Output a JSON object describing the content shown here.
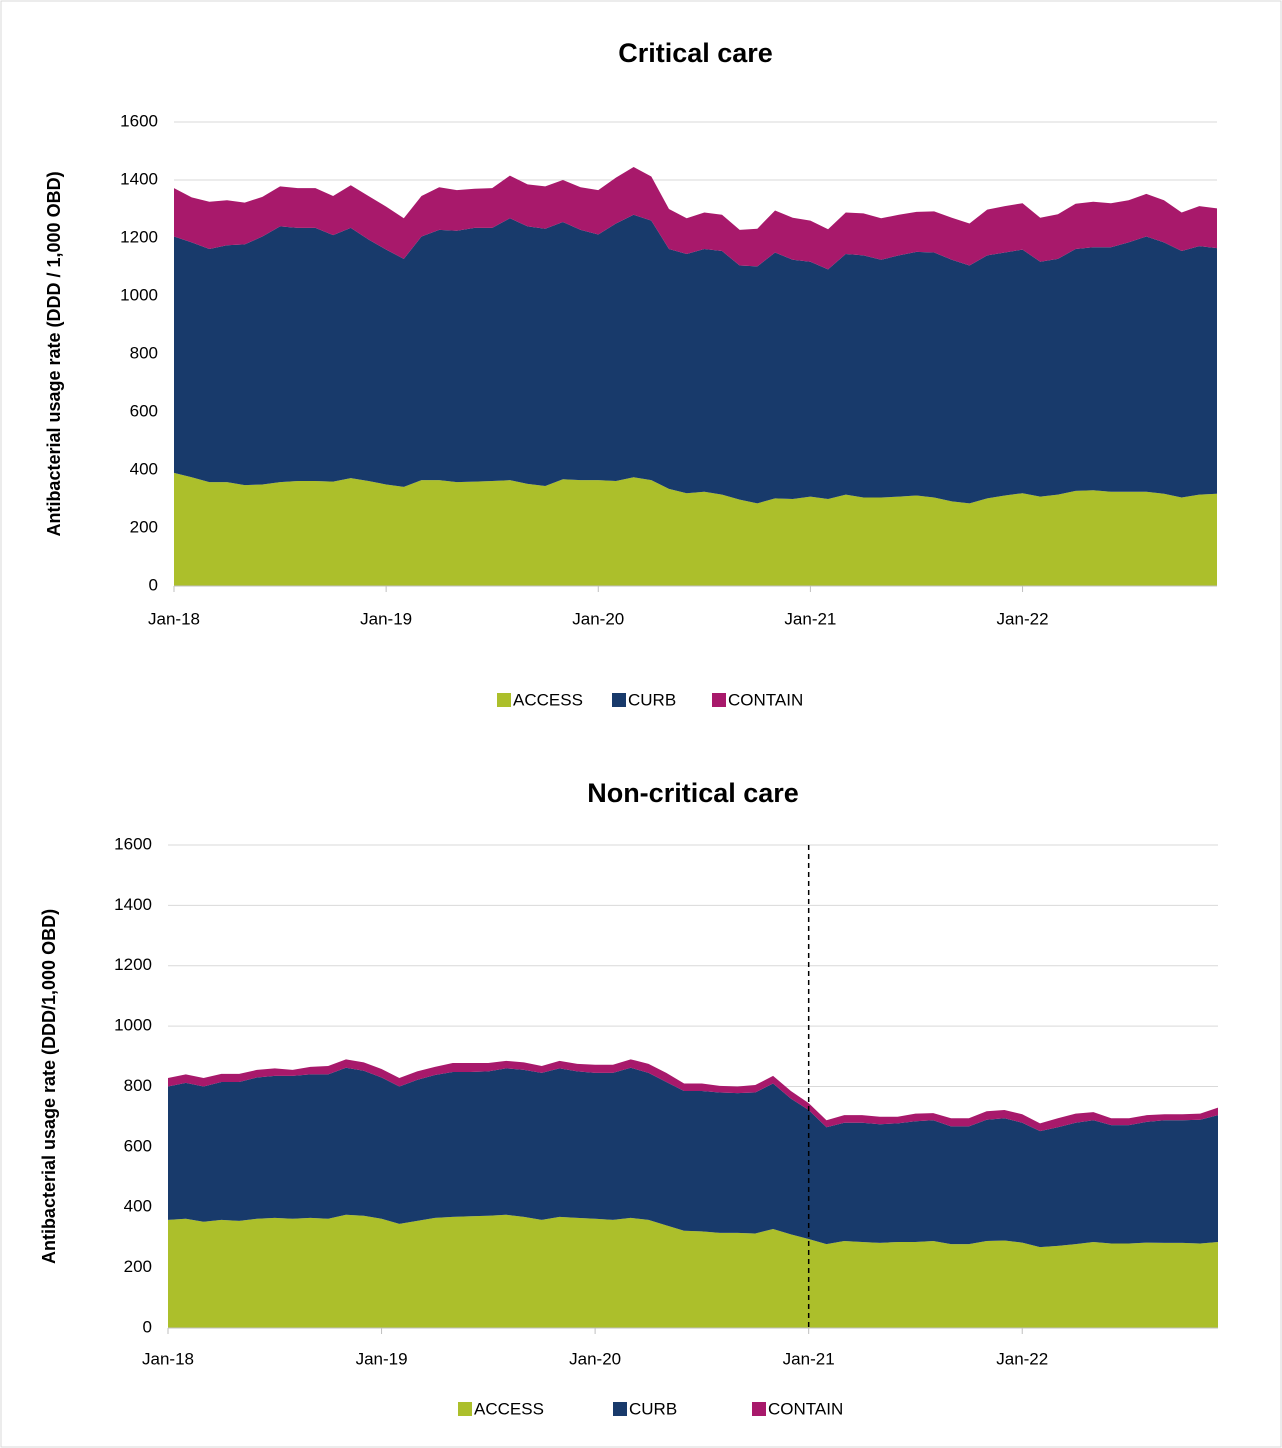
{
  "chart_data": [
    {
      "type": "stacked_area",
      "title": "Critical care",
      "y_label": "Antibacterial usage rate (DDD / 1,000 OBD)",
      "categories": [
        "Jan-18",
        null,
        null,
        null,
        null,
        null,
        null,
        null,
        null,
        null,
        null,
        null,
        "Jan-19",
        null,
        null,
        null,
        null,
        null,
        null,
        null,
        null,
        null,
        null,
        null,
        "Jan-20",
        null,
        null,
        null,
        null,
        null,
        null,
        null,
        null,
        null,
        null,
        null,
        "Jan-21",
        null,
        null,
        null,
        null,
        null,
        null,
        null,
        null,
        null,
        null,
        null,
        "Jan-22",
        null,
        null,
        null,
        null,
        null,
        null,
        null,
        null,
        null,
        null,
        null
      ],
      "series": [
        {
          "name": "ACCESS",
          "color": "#acbf2b",
          "values": [
            390,
            375,
            358,
            358,
            348,
            350,
            358,
            362,
            362,
            360,
            372,
            362,
            350,
            342,
            365,
            365,
            358,
            360,
            362,
            365,
            352,
            345,
            368,
            365,
            365,
            362,
            375,
            365,
            335,
            320,
            325,
            315,
            298,
            285,
            302,
            300,
            308,
            300,
            315,
            305,
            305,
            308,
            312,
            305,
            292,
            285,
            302,
            312,
            320,
            308,
            315,
            328,
            330,
            325,
            325,
            325,
            318,
            305,
            315,
            318
          ]
        },
        {
          "name": "CURB",
          "color": "#183a6b",
          "values": [
            815,
            810,
            804,
            817,
            830,
            855,
            882,
            873,
            873,
            850,
            863,
            833,
            810,
            786,
            840,
            863,
            867,
            875,
            873,
            903,
            888,
            887,
            887,
            863,
            847,
            888,
            905,
            895,
            827,
            825,
            837,
            840,
            807,
            817,
            848,
            825,
            810,
            792,
            830,
            835,
            820,
            832,
            840,
            845,
            833,
            820,
            838,
            838,
            840,
            810,
            813,
            834,
            838,
            843,
            860,
            880,
            867,
            850,
            857,
            847
          ]
        },
        {
          "name": "CONTAIN",
          "color": "#a8196b",
          "values": [
            167,
            155,
            163,
            155,
            144,
            137,
            138,
            137,
            137,
            135,
            147,
            150,
            148,
            140,
            140,
            147,
            140,
            135,
            137,
            147,
            145,
            146,
            145,
            147,
            153,
            158,
            165,
            152,
            138,
            123,
            126,
            125,
            123,
            130,
            145,
            145,
            142,
            138,
            143,
            145,
            143,
            140,
            138,
            142,
            145,
            145,
            158,
            160,
            160,
            152,
            154,
            156,
            157,
            152,
            145,
            147,
            145,
            133,
            138,
            137
          ]
        }
      ],
      "ylim": [
        0,
        1600
      ],
      "yticks": [
        0,
        200,
        400,
        600,
        800,
        1000,
        1200,
        1400,
        1600
      ],
      "grid": true,
      "legend": "bottom"
    },
    {
      "type": "stacked_area",
      "title": "Non-critical care",
      "y_label": "Antibacterial usage rate (DDD/1,000 OBD)",
      "categories": [
        "Jan-18",
        null,
        null,
        null,
        null,
        null,
        null,
        null,
        null,
        null,
        null,
        null,
        "Jan-19",
        null,
        null,
        null,
        null,
        null,
        null,
        null,
        null,
        null,
        null,
        null,
        "Jan-20",
        null,
        null,
        null,
        null,
        null,
        null,
        null,
        null,
        null,
        null,
        null,
        "Jan-21",
        null,
        null,
        null,
        null,
        null,
        null,
        null,
        null,
        null,
        null,
        null,
        "Jan-22",
        null,
        null,
        null,
        null,
        null,
        null,
        null,
        null,
        null,
        null,
        null
      ],
      "series": [
        {
          "name": "ACCESS",
          "color": "#acbf2b",
          "values": [
            358,
            362,
            352,
            358,
            355,
            362,
            365,
            362,
            365,
            362,
            375,
            372,
            362,
            345,
            355,
            365,
            368,
            370,
            372,
            375,
            368,
            358,
            368,
            365,
            362,
            358,
            365,
            358,
            340,
            322,
            320,
            315,
            315,
            313,
            328,
            310,
            295,
            278,
            288,
            285,
            282,
            285,
            285,
            288,
            278,
            278,
            288,
            290,
            283,
            268,
            272,
            278,
            285,
            280,
            280,
            283,
            282,
            282,
            280,
            285
          ]
        },
        {
          "name": "CURB",
          "color": "#183a6b",
          "values": [
            442,
            450,
            448,
            457,
            460,
            468,
            470,
            473,
            475,
            478,
            487,
            480,
            468,
            455,
            467,
            473,
            480,
            478,
            478,
            485,
            487,
            487,
            492,
            485,
            483,
            487,
            497,
            487,
            475,
            463,
            465,
            465,
            463,
            467,
            482,
            450,
            427,
            387,
            392,
            395,
            393,
            393,
            400,
            400,
            390,
            390,
            402,
            405,
            397,
            384,
            393,
            402,
            403,
            392,
            392,
            400,
            406,
            406,
            410,
            420
          ]
        },
        {
          "name": "CONTAIN",
          "color": "#a8196b",
          "values": [
            28,
            28,
            28,
            27,
            27,
            25,
            25,
            20,
            25,
            28,
            28,
            28,
            28,
            28,
            28,
            27,
            30,
            30,
            28,
            25,
            25,
            23,
            25,
            25,
            27,
            27,
            28,
            30,
            30,
            25,
            25,
            22,
            22,
            25,
            25,
            25,
            23,
            23,
            25,
            25,
            25,
            22,
            25,
            24,
            27,
            27,
            28,
            27,
            28,
            26,
            30,
            30,
            27,
            23,
            23,
            22,
            20,
            20,
            20,
            25
          ]
        }
      ],
      "ylim": [
        0,
        1600
      ],
      "yticks": [
        0,
        200,
        400,
        600,
        800,
        1000,
        1200,
        1400,
        1600
      ],
      "grid": true,
      "legend": "bottom",
      "reference_line": {
        "x": "Jan-21",
        "style": "dashed"
      }
    }
  ]
}
